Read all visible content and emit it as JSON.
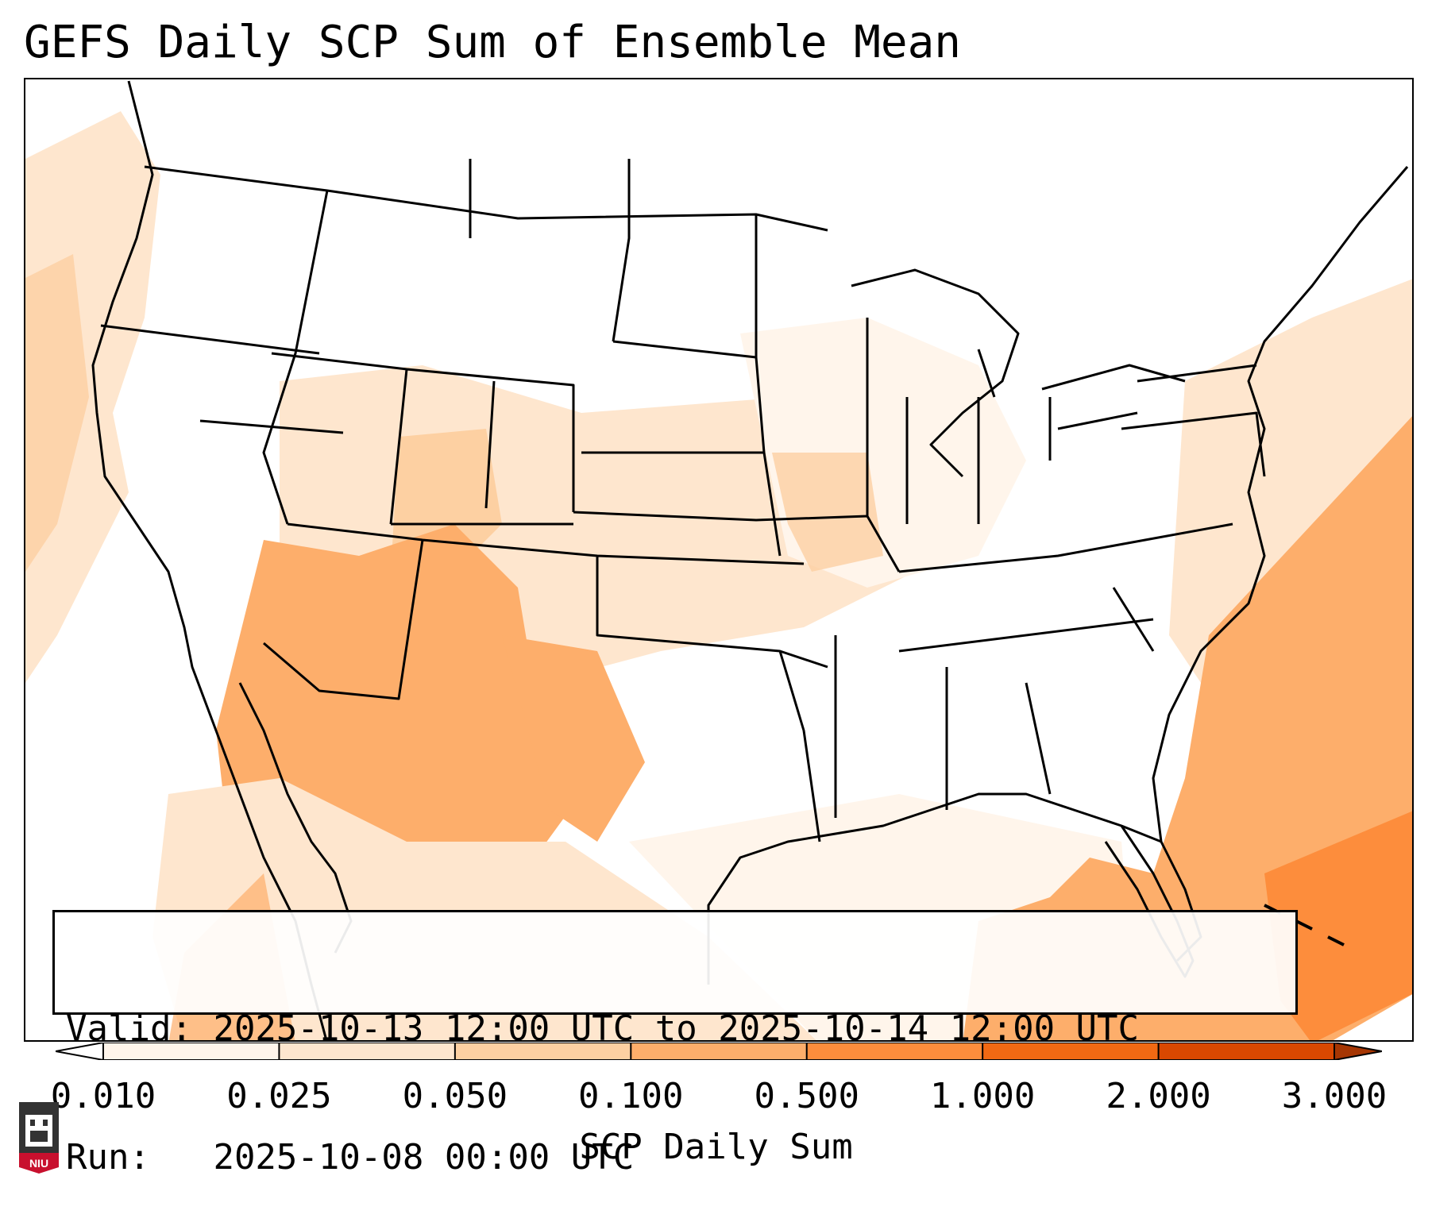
{
  "title": "GEFS Daily SCP Sum of Ensemble Mean",
  "map": {
    "region": "Contiguous United States, southern Canada, northern Mexico, Gulf of Mexico, western Atlantic",
    "field": "SCP daily sum (ensemble mean)",
    "shading_summary": [
      {
        "area": "Arizona, New Mexico, west Texas, northwest Mexico",
        "level": "0.100–0.500"
      },
      {
        "area": "Western Atlantic off southeast US coast and Florida",
        "level": "0.100–0.500"
      },
      {
        "area": "Near Bahamas",
        "level": "0.500–1.000"
      },
      {
        "area": "Colorado, Utah, Kansas, Missouri, Iowa, Illinois",
        "level": "0.010–0.050"
      },
      {
        "area": "Northern Plains, Great Basin, Southeast US interior",
        "level": "below 0.010"
      }
    ]
  },
  "info": {
    "valid_label": "Valid:",
    "valid_value": "2025-10-13 12:00 UTC to 2025-10-14 12:00 UTC",
    "run_label": "Run:",
    "run_value": "2025-10-08 00:00 UTC"
  },
  "colorbar": {
    "label": "SCP Daily Sum",
    "ticks": [
      "0.010",
      "0.025",
      "0.050",
      "0.100",
      "0.500",
      "1.000",
      "2.000",
      "3.000"
    ],
    "colors": [
      "#fff5eb",
      "#fee6ce",
      "#fdd0a2",
      "#fdae6b",
      "#fd8d3c",
      "#f16913",
      "#d94801",
      "#a63603"
    ],
    "extend": "both"
  },
  "logo": {
    "text": "NIU"
  }
}
